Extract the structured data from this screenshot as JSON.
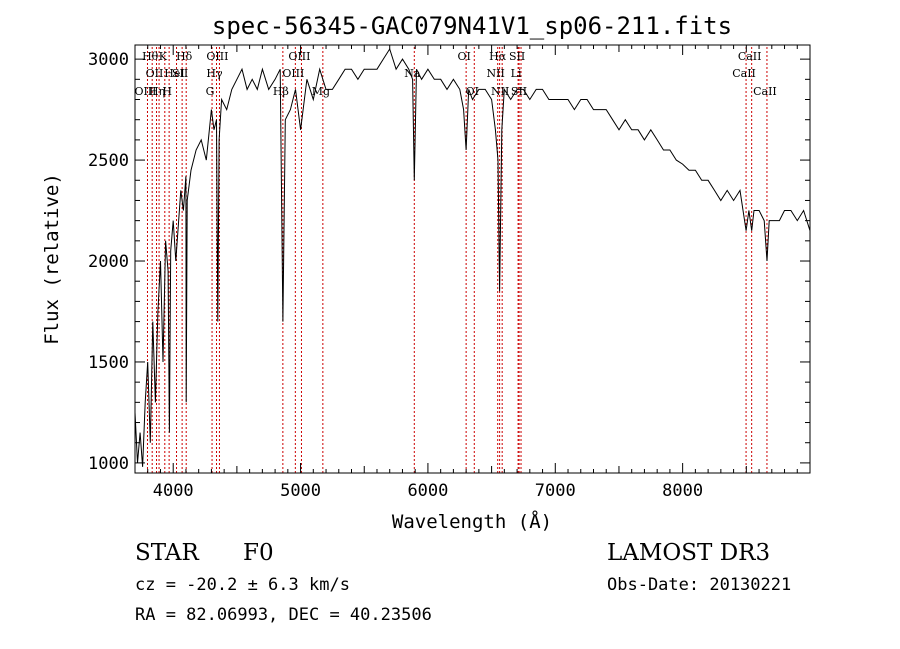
{
  "chart_data": {
    "type": "line",
    "title": "spec-56345-GAC079N41V1_sp06-211.fits",
    "xlabel": "Wavelength (Å)",
    "ylabel": "Flux (relative)",
    "xlim": [
      3700,
      9000
    ],
    "ylim": [
      950,
      3070
    ],
    "xticks": [
      4000,
      5000,
      6000,
      7000,
      8000
    ],
    "yticks": [
      1000,
      1500,
      2000,
      2500,
      3000
    ],
    "series": [
      {
        "name": "flux",
        "x": [
          3700,
          3720,
          3740,
          3760,
          3780,
          3800,
          3820,
          3840,
          3860,
          3880,
          3900,
          3920,
          3940,
          3960,
          3970,
          3980,
          4000,
          4020,
          4060,
          4080,
          4100,
          4102,
          4110,
          4140,
          4180,
          4220,
          4260,
          4300,
          4320,
          4340,
          4350,
          4360,
          4380,
          4420,
          4460,
          4500,
          4540,
          4580,
          4620,
          4660,
          4700,
          4750,
          4800,
          4840,
          4861,
          4880,
          4920,
          4960,
          5000,
          5050,
          5100,
          5150,
          5200,
          5250,
          5300,
          5350,
          5400,
          5450,
          5500,
          5550,
          5600,
          5650,
          5700,
          5750,
          5800,
          5850,
          5880,
          5893,
          5910,
          5950,
          6000,
          6050,
          6100,
          6150,
          6200,
          6250,
          6280,
          6300,
          6320,
          6350,
          6400,
          6450,
          6500,
          6530,
          6550,
          6563,
          6580,
          6600,
          6650,
          6700,
          6750,
          6800,
          6850,
          6900,
          6950,
          7000,
          7050,
          7100,
          7150,
          7200,
          7250,
          7300,
          7350,
          7400,
          7450,
          7500,
          7550,
          7600,
          7650,
          7700,
          7750,
          7800,
          7850,
          7900,
          7950,
          8000,
          8050,
          8100,
          8150,
          8200,
          8250,
          8300,
          8350,
          8400,
          8450,
          8498,
          8520,
          8542,
          8560,
          8600,
          8640,
          8662,
          8680,
          8720,
          8760,
          8800,
          8850,
          8900,
          8950,
          9000
        ],
        "values": [
          1250,
          1000,
          1150,
          980,
          1300,
          1500,
          1100,
          1700,
          1300,
          1750,
          2000,
          1500,
          2100,
          1950,
          1150,
          2050,
          2200,
          2000,
          2350,
          2250,
          2420,
          1300,
          2300,
          2450,
          2550,
          2600,
          2500,
          2750,
          2650,
          2700,
          1700,
          2600,
          2800,
          2750,
          2850,
          2900,
          2950,
          2850,
          2900,
          2850,
          2950,
          2850,
          2900,
          2950,
          1700,
          2700,
          2750,
          2850,
          2650,
          2900,
          2800,
          2950,
          2850,
          2850,
          2900,
          2950,
          2950,
          2900,
          2950,
          2950,
          2950,
          3000,
          3050,
          2950,
          3000,
          2950,
          2900,
          2400,
          2950,
          2900,
          2950,
          2900,
          2900,
          2850,
          2900,
          2850,
          2750,
          2550,
          2850,
          2800,
          2850,
          2850,
          2800,
          2650,
          2500,
          1850,
          2650,
          2850,
          2800,
          2850,
          2850,
          2800,
          2850,
          2850,
          2800,
          2800,
          2800,
          2800,
          2750,
          2800,
          2800,
          2750,
          2750,
          2750,
          2700,
          2650,
          2700,
          2650,
          2650,
          2600,
          2650,
          2600,
          2550,
          2550,
          2500,
          2480,
          2450,
          2450,
          2400,
          2400,
          2350,
          2300,
          2350,
          2300,
          2350,
          2150,
          2250,
          2150,
          2250,
          2250,
          2200,
          2000,
          2200,
          2200,
          2200,
          2250,
          2250,
          2200,
          2250,
          2150
        ]
      }
    ],
    "line_markers": [
      {
        "wavelength": 3798,
        "label": "OIII",
        "row": 2
      },
      {
        "wavelength": 3835,
        "label": "Hθ",
        "row": 0
      },
      {
        "wavelength": 3869,
        "label": "OII",
        "row": 1
      },
      {
        "wavelength": 3889,
        "label": "Hη",
        "row": 2
      },
      {
        "wavelength": 3934,
        "label": "K",
        "row": 0
      },
      {
        "wavelength": 3968,
        "label": "H",
        "row": 2
      },
      {
        "wavelength": 4026,
        "label": "HeI",
        "row": 1
      },
      {
        "wavelength": 4070,
        "label": "SII",
        "row": 1
      },
      {
        "wavelength": 4102,
        "label": "Hδ",
        "row": 0
      },
      {
        "wavelength": 4305,
        "label": "G",
        "row": 2
      },
      {
        "wavelength": 4340,
        "label": "Hγ",
        "row": 1
      },
      {
        "wavelength": 4363,
        "label": "OIII",
        "row": 0
      },
      {
        "wavelength": 4861,
        "label": "Hβ",
        "row": 2
      },
      {
        "wavelength": 4959,
        "label": "OIII",
        "row": 1
      },
      {
        "wavelength": 5007,
        "label": "OIII",
        "row": 0
      },
      {
        "wavelength": 5175,
        "label": "Mg",
        "row": 3
      },
      {
        "wavelength": 5893,
        "label": "Na",
        "row": 1
      },
      {
        "wavelength": 6300,
        "label": "OI",
        "row": 0
      },
      {
        "wavelength": 6364,
        "label": "OI",
        "row": 2
      },
      {
        "wavelength": 6548,
        "label": "NII",
        "row": 1
      },
      {
        "wavelength": 6563,
        "label": "Hα",
        "row": 0
      },
      {
        "wavelength": 6583,
        "label": "NII",
        "row": 2
      },
      {
        "wavelength": 6708,
        "label": "Li",
        "row": 1
      },
      {
        "wavelength": 6716,
        "label": "SII",
        "row": 0
      },
      {
        "wavelength": 6731,
        "label": "SII",
        "row": 2
      },
      {
        "wavelength": 8498,
        "label": "CaII",
        "row": 1
      },
      {
        "wavelength": 8542,
        "label": "CaII",
        "row": 0
      },
      {
        "wavelength": 8662,
        "label": "CaII",
        "row": 2
      }
    ]
  },
  "info": {
    "object_class": "STAR",
    "subclass": "F0",
    "survey": "LAMOST DR3",
    "redshift": "cz = -20.2 ± 6.3 km/s",
    "obs_date": "Obs-Date: 20130221",
    "coords": "RA =  82.06993, DEC =  40.23506"
  },
  "colors": {
    "line": "#000000",
    "marker": "#cc0000"
  }
}
